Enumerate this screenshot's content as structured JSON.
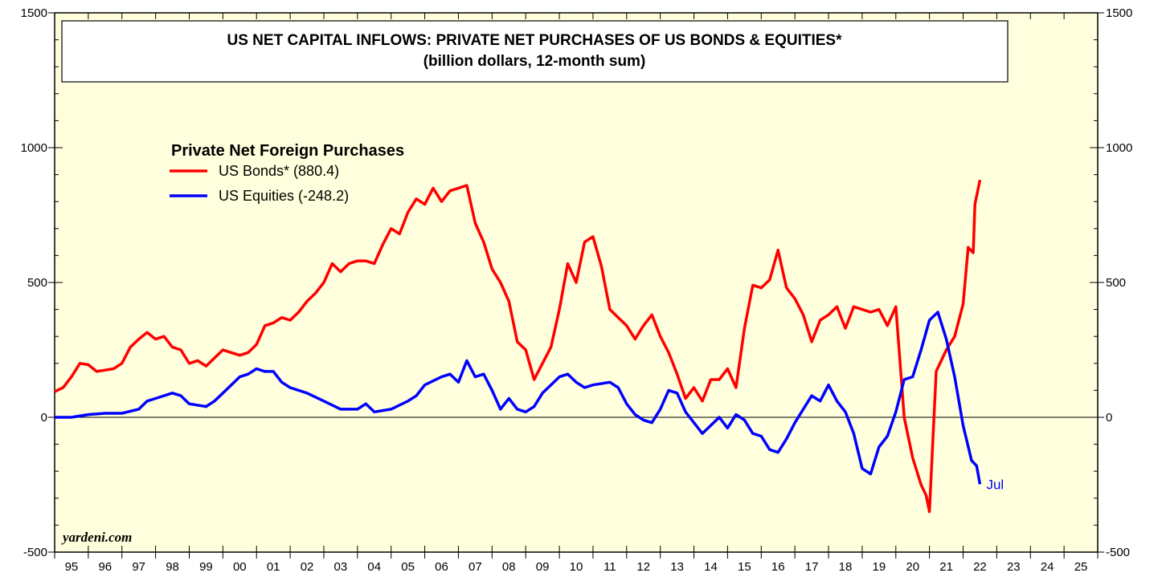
{
  "chart_data": {
    "type": "line",
    "title": "US NET CAPITAL INFLOWS: PRIVATE NET PURCHASES OF US BONDS & EQUITIES*",
    "subtitle": "(billion dollars, 12-month sum)",
    "legend_title": "Private Net Foreign Purchases",
    "source": "yardeni.com",
    "end_label": "Jul",
    "categories": [
      "95",
      "96",
      "97",
      "98",
      "99",
      "00",
      "01",
      "02",
      "03",
      "04",
      "05",
      "06",
      "07",
      "08",
      "09",
      "10",
      "11",
      "12",
      "13",
      "14",
      "15",
      "16",
      "17",
      "18",
      "19",
      "20",
      "21",
      "22",
      "23",
      "24",
      "25"
    ],
    "xlim": [
      1995,
      2026
    ],
    "ylim": [
      -500,
      1500
    ],
    "yticks": [
      -500,
      0,
      500,
      1000,
      1500
    ],
    "series": [
      {
        "name": "US Bonds* (880.4)",
        "color": "#ff0000",
        "x": [
          1995.0,
          1995.25,
          1995.5,
          1995.75,
          1996.0,
          1996.25,
          1996.5,
          1996.75,
          1997.0,
          1997.25,
          1997.5,
          1997.75,
          1998.0,
          1998.25,
          1998.5,
          1998.75,
          1999.0,
          1999.25,
          1999.5,
          1999.75,
          2000.0,
          2000.25,
          2000.5,
          2000.75,
          2001.0,
          2001.25,
          2001.5,
          2001.75,
          2002.0,
          2002.25,
          2002.5,
          2002.75,
          2003.0,
          2003.25,
          2003.5,
          2003.75,
          2004.0,
          2004.25,
          2004.5,
          2004.75,
          2005.0,
          2005.25,
          2005.5,
          2005.75,
          2006.0,
          2006.25,
          2006.5,
          2006.75,
          2007.0,
          2007.25,
          2007.5,
          2007.75,
          2008.0,
          2008.25,
          2008.5,
          2008.75,
          2009.0,
          2009.25,
          2009.5,
          2009.75,
          2010.0,
          2010.25,
          2010.5,
          2010.75,
          2011.0,
          2011.25,
          2011.5,
          2011.75,
          2012.0,
          2012.25,
          2012.5,
          2012.75,
          2013.0,
          2013.25,
          2013.5,
          2013.75,
          2014.0,
          2014.25,
          2014.5,
          2014.75,
          2015.0,
          2015.25,
          2015.5,
          2015.75,
          2016.0,
          2016.25,
          2016.5,
          2016.75,
          2017.0,
          2017.25,
          2017.5,
          2017.75,
          2018.0,
          2018.25,
          2018.5,
          2018.75,
          2019.0,
          2019.25,
          2019.5,
          2019.75,
          2020.0,
          2020.25,
          2020.5,
          2020.75,
          2020.9,
          2021.0,
          2021.2,
          2021.5,
          2021.75,
          2022.0,
          2022.15,
          2022.3,
          2022.35,
          2022.5
        ],
        "values": [
          95,
          110,
          150,
          200,
          195,
          170,
          175,
          180,
          200,
          260,
          290,
          315,
          290,
          300,
          260,
          250,
          200,
          210,
          190,
          220,
          250,
          240,
          230,
          240,
          270,
          340,
          350,
          370,
          360,
          390,
          430,
          460,
          500,
          570,
          540,
          570,
          580,
          580,
          570,
          640,
          700,
          680,
          760,
          810,
          790,
          850,
          800,
          840,
          850,
          860,
          720,
          650,
          550,
          500,
          430,
          280,
          250,
          140,
          200,
          260,
          400,
          570,
          500,
          650,
          670,
          560,
          400,
          370,
          340,
          290,
          340,
          380,
          300,
          240,
          160,
          70,
          110,
          60,
          140,
          140,
          180,
          110,
          330,
          490,
          480,
          510,
          620,
          480,
          440,
          380,
          280,
          360,
          380,
          410,
          330,
          410,
          400,
          390,
          400,
          340,
          410,
          0,
          -150,
          -250,
          -290,
          -350,
          170,
          250,
          300,
          420,
          630,
          610,
          790,
          880.4
        ]
      },
      {
        "name": "US Equities (-248.2)",
        "color": "#0000ff",
        "x": [
          1995.0,
          1995.5,
          1996.0,
          1996.5,
          1997.0,
          1997.5,
          1997.75,
          1998.0,
          1998.5,
          1998.75,
          1999.0,
          1999.5,
          1999.75,
          2000.0,
          2000.5,
          2000.75,
          2001.0,
          2001.25,
          2001.5,
          2001.75,
          2002.0,
          2002.5,
          2003.0,
          2003.5,
          2004.0,
          2004.25,
          2004.5,
          2005.0,
          2005.5,
          2005.75,
          2006.0,
          2006.5,
          2006.75,
          2007.0,
          2007.25,
          2007.5,
          2007.75,
          2008.0,
          2008.25,
          2008.5,
          2008.75,
          2009.0,
          2009.25,
          2009.5,
          2009.75,
          2010.0,
          2010.25,
          2010.5,
          2010.75,
          2011.0,
          2011.5,
          2011.75,
          2012.0,
          2012.25,
          2012.5,
          2012.75,
          2013.0,
          2013.25,
          2013.5,
          2013.75,
          2014.0,
          2014.25,
          2014.5,
          2014.75,
          2015.0,
          2015.25,
          2015.5,
          2015.75,
          2016.0,
          2016.25,
          2016.5,
          2016.75,
          2017.0,
          2017.25,
          2017.5,
          2017.75,
          2018.0,
          2018.25,
          2018.5,
          2018.75,
          2019.0,
          2019.25,
          2019.5,
          2019.75,
          2020.0,
          2020.25,
          2020.5,
          2020.75,
          2021.0,
          2021.25,
          2021.5,
          2021.75,
          2022.0,
          2022.25,
          2022.4,
          2022.5
        ],
        "values": [
          0,
          0,
          10,
          15,
          15,
          30,
          60,
          70,
          90,
          80,
          50,
          40,
          60,
          90,
          150,
          160,
          180,
          170,
          170,
          130,
          110,
          90,
          60,
          30,
          30,
          50,
          20,
          30,
          60,
          80,
          120,
          150,
          160,
          130,
          210,
          150,
          160,
          100,
          30,
          70,
          30,
          20,
          40,
          90,
          120,
          150,
          160,
          130,
          110,
          120,
          130,
          110,
          50,
          10,
          -10,
          -20,
          30,
          100,
          90,
          20,
          -20,
          -60,
          -30,
          0,
          -40,
          10,
          -10,
          -60,
          -70,
          -120,
          -130,
          -80,
          -20,
          30,
          80,
          60,
          120,
          60,
          20,
          -60,
          -190,
          -210,
          -110,
          -70,
          20,
          140,
          150,
          250,
          360,
          390,
          290,
          150,
          -30,
          -160,
          -180,
          -248.2
        ]
      }
    ]
  }
}
